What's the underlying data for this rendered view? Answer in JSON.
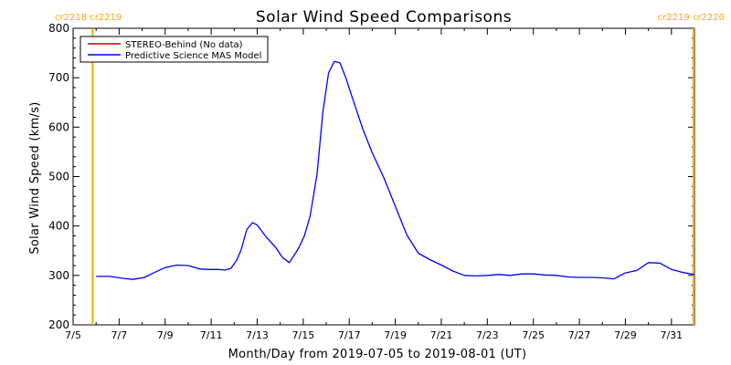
{
  "chart_data": {
    "type": "line",
    "title": "Solar Wind Speed Comparisons",
    "xlabel": "Month/Day from 2019-07-05 to 2019-08-01 (UT)",
    "ylabel": "Solar Wind Speed (km/s)",
    "ylim": [
      200,
      800
    ],
    "xlim": [
      5.0,
      32.0
    ],
    "x_unit": "day of July 2019",
    "yticks": [
      200,
      300,
      400,
      500,
      600,
      700,
      800
    ],
    "xticks": [
      {
        "x": 5,
        "label": "7/5"
      },
      {
        "x": 7,
        "label": "7/7"
      },
      {
        "x": 9,
        "label": "7/9"
      },
      {
        "x": 11,
        "label": "7/11"
      },
      {
        "x": 13,
        "label": "7/13"
      },
      {
        "x": 15,
        "label": "7/15"
      },
      {
        "x": 17,
        "label": "7/17"
      },
      {
        "x": 19,
        "label": "7/19"
      },
      {
        "x": 21,
        "label": "7/21"
      },
      {
        "x": 23,
        "label": "7/23"
      },
      {
        "x": 25,
        "label": "7/25"
      },
      {
        "x": 27,
        "label": "7/27"
      },
      {
        "x": 29,
        "label": "7/29"
      },
      {
        "x": 31,
        "label": "7/31"
      }
    ],
    "legend": {
      "placement": "top-left",
      "boxed": true
    },
    "series": [
      {
        "name": "STEREO-Behind (No data)",
        "color": "#c00000",
        "x": [],
        "y": []
      },
      {
        "name": "Predictive Science MAS Model",
        "color": "#0000ff",
        "x": [
          6.0,
          6.6,
          7.2,
          7.6,
          8.1,
          8.5,
          9.0,
          9.5,
          10.0,
          10.5,
          11.0,
          11.3,
          11.6,
          11.85,
          12.1,
          12.3,
          12.55,
          12.8,
          13.0,
          13.4,
          13.8,
          14.1,
          14.4,
          14.8,
          15.05,
          15.3,
          15.6,
          15.85,
          16.1,
          16.35,
          16.6,
          16.85,
          17.2,
          17.6,
          18.0,
          18.5,
          19.0,
          19.5,
          20.0,
          20.5,
          21.0,
          21.5,
          22.0,
          22.5,
          23.0,
          23.5,
          24.0,
          24.5,
          25.0,
          25.5,
          26.0,
          26.5,
          27.0,
          27.5,
          28.0,
          28.5,
          29.0,
          29.5,
          30.0,
          30.5,
          31.0,
          31.5,
          32.0
        ],
        "y": [
          298,
          298,
          294,
          292,
          296,
          305,
          316,
          321,
          320,
          313,
          312,
          312,
          311,
          314,
          330,
          352,
          393,
          407,
          402,
          377,
          357,
          336,
          326,
          355,
          380,
          420,
          505,
          630,
          710,
          733,
          730,
          700,
          650,
          595,
          548,
          498,
          440,
          382,
          345,
          332,
          321,
          309,
          300,
          299,
          300,
          302,
          300,
          303,
          303,
          301,
          300,
          297,
          296,
          296,
          295,
          293,
          305,
          310,
          326,
          325,
          312,
          306,
          302
        ]
      }
    ],
    "carrington_markers": [
      {
        "x": 5.85,
        "color": "#ffa500",
        "label_top_left": "cr2218 cr2219"
      },
      {
        "x": 32.0,
        "color": "#ffa500",
        "label_top_right": "cr2219 cr2220"
      }
    ]
  }
}
